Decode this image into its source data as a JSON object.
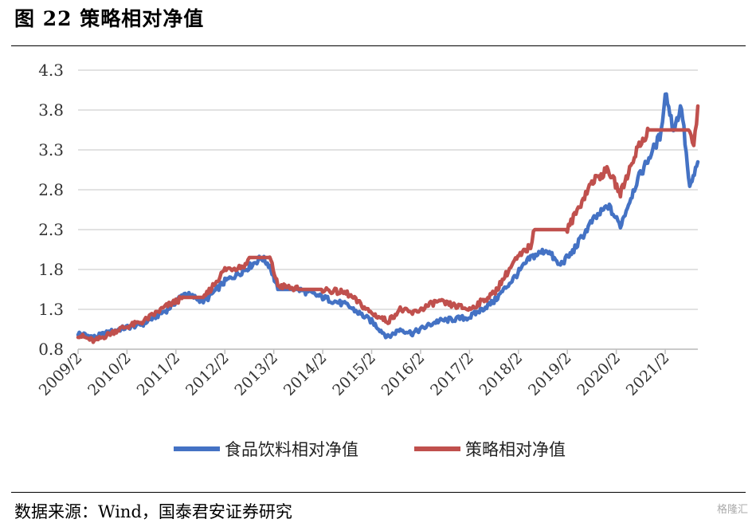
{
  "header": {
    "title": "图 22  策略相对净值"
  },
  "footer": {
    "source": "数据来源：Wind，国泰君安证券研究",
    "watermark": "格隆汇"
  },
  "colors": {
    "food_beverage": "#4472C4",
    "strategy": "#C0504D",
    "grid": "#d9d9d9"
  },
  "chart_data": {
    "type": "line",
    "title": "",
    "xlabel": "",
    "ylabel": "",
    "ylim": [
      0.8,
      4.3
    ],
    "yticks": [
      "4.3",
      "3.8",
      "3.3",
      "2.8",
      "2.3",
      "1.8",
      "1.3",
      "0.8"
    ],
    "xticks": [
      "2009/2",
      "2010/2",
      "2011/2",
      "2012/2",
      "2013/2",
      "2014/2",
      "2015/2",
      "2016/2",
      "2017/2",
      "2018/2",
      "2019/2",
      "2020/2",
      "2021/2"
    ],
    "grid": "horizontal",
    "legend_position": "bottom",
    "series": [
      {
        "name": "食品饮料相对净值",
        "color": "#4472C4",
        "points": [
          [
            "2009/2",
            1.0
          ],
          [
            "2009/6",
            0.95
          ],
          [
            "2009/12",
            1.05
          ],
          [
            "2010/6",
            1.12
          ],
          [
            "2010/12",
            1.3
          ],
          [
            "2011/4",
            1.5
          ],
          [
            "2011/9",
            1.4
          ],
          [
            "2012/2",
            1.65
          ],
          [
            "2012/7",
            1.8
          ],
          [
            "2012/11",
            1.95
          ],
          [
            "2013/1",
            1.85
          ],
          [
            "2013/3",
            1.55
          ],
          [
            "2013/8",
            1.55
          ],
          [
            "2014/2",
            1.45
          ],
          [
            "2014/8",
            1.35
          ],
          [
            "2015/2",
            1.15
          ],
          [
            "2015/6",
            0.95
          ],
          [
            "2015/9",
            1.05
          ],
          [
            "2015/12",
            1.0
          ],
          [
            "2016/6",
            1.15
          ],
          [
            "2017/2",
            1.2
          ],
          [
            "2017/8",
            1.4
          ],
          [
            "2018/1",
            1.7
          ],
          [
            "2018/5",
            1.95
          ],
          [
            "2018/9",
            2.05
          ],
          [
            "2018/12",
            1.85
          ],
          [
            "2019/3",
            2.0
          ],
          [
            "2019/8",
            2.4
          ],
          [
            "2019/12",
            2.6
          ],
          [
            "2020/3",
            2.35
          ],
          [
            "2020/7",
            2.9
          ],
          [
            "2021/1",
            3.5
          ],
          [
            "2021/2",
            4.05
          ],
          [
            "2021/4",
            3.55
          ],
          [
            "2021/6",
            3.85
          ],
          [
            "2021/8",
            2.8
          ],
          [
            "2021/10",
            3.15
          ]
        ]
      },
      {
        "name": "策略相对净值",
        "color": "#C0504D",
        "points": [
          [
            "2009/2",
            0.98
          ],
          [
            "2009/6",
            0.9
          ],
          [
            "2009/12",
            1.05
          ],
          [
            "2010/6",
            1.15
          ],
          [
            "2010/12",
            1.35
          ],
          [
            "2011/4",
            1.45
          ],
          [
            "2011/9",
            1.45
          ],
          [
            "2012/2",
            1.8
          ],
          [
            "2012/7",
            1.85
          ],
          [
            "2012/8",
            1.95
          ],
          [
            "2013/1",
            1.95
          ],
          [
            "2013/3",
            1.6
          ],
          [
            "2013/8",
            1.55
          ],
          [
            "2014/2",
            1.55
          ],
          [
            "2014/8",
            1.5
          ],
          [
            "2015/2",
            1.25
          ],
          [
            "2015/6",
            1.15
          ],
          [
            "2015/9",
            1.3
          ],
          [
            "2015/12",
            1.25
          ],
          [
            "2016/6",
            1.4
          ],
          [
            "2017/2",
            1.3
          ],
          [
            "2017/8",
            1.5
          ],
          [
            "2018/1",
            1.9
          ],
          [
            "2018/5",
            2.1
          ],
          [
            "2018/6",
            2.3
          ],
          [
            "2019/2",
            2.3
          ],
          [
            "2019/8",
            2.9
          ],
          [
            "2019/12",
            3.05
          ],
          [
            "2020/3",
            2.75
          ],
          [
            "2020/7",
            3.3
          ],
          [
            "2020/10",
            3.55
          ],
          [
            "2021/1",
            3.55
          ],
          [
            "2021/8",
            3.55
          ],
          [
            "2021/9",
            3.3
          ],
          [
            "2021/10",
            3.85
          ]
        ]
      }
    ]
  }
}
